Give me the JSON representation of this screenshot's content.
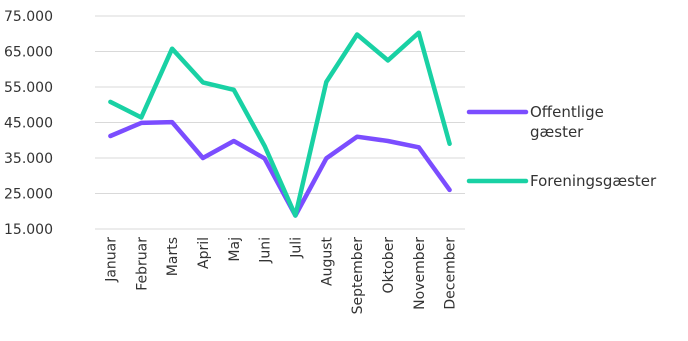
{
  "chart_data": {
    "type": "line",
    "title": "",
    "xlabel": "",
    "ylabel": "",
    "categories": [
      "Januar",
      "Februar",
      "Marts",
      "April",
      "Maj",
      "Juni",
      "Juli",
      "August",
      "September",
      "Oktober",
      "November",
      "December"
    ],
    "ylim": [
      15000,
      75000
    ],
    "yticks": [
      15000,
      25000,
      35000,
      45000,
      55000,
      65000,
      75000
    ],
    "ytick_labels": [
      "15.000",
      "25.000",
      "35.000",
      "45.000",
      "55.000",
      "65.000",
      "75.000"
    ],
    "grid": "horizontal",
    "legend": "right",
    "series": [
      {
        "name": "Offentlige gæster",
        "legend_lines": [
          "Offentlige",
          "gæster"
        ],
        "color": "#7b4dff",
        "values": [
          41200,
          44900,
          45100,
          35000,
          39800,
          34900,
          18800,
          34900,
          41000,
          39800,
          38000,
          26000
        ]
      },
      {
        "name": "Foreningsgæster",
        "legend_lines": [
          "Foreningsgæster"
        ],
        "color": "#19d1a4",
        "values": [
          50800,
          46400,
          65800,
          56300,
          54200,
          38400,
          18800,
          56400,
          69800,
          62500,
          70300,
          39000
        ]
      }
    ]
  }
}
